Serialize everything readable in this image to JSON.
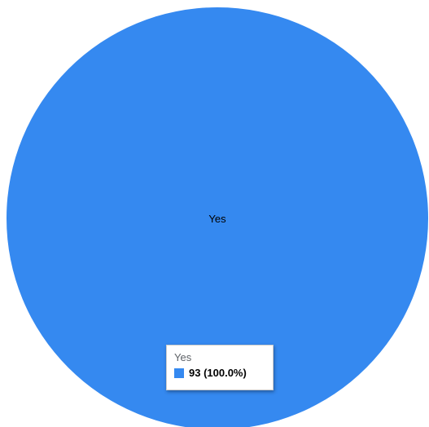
{
  "chart_data": {
    "type": "pie",
    "categories": [
      "Yes"
    ],
    "values": [
      93
    ],
    "percentages": [
      100.0
    ],
    "colors": [
      "#3589f0"
    ],
    "slice_labels": [
      "Yes"
    ]
  },
  "tooltip": {
    "title": "Yes",
    "value_text": "93 (100.0%)",
    "swatch_color": "#3589f0"
  }
}
